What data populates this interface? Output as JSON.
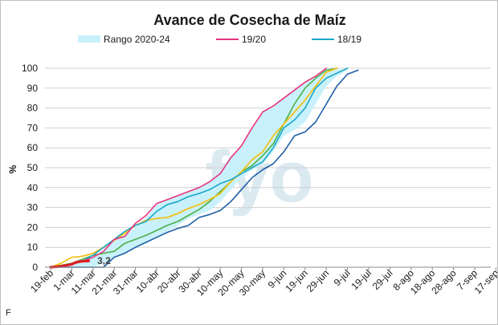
{
  "watermark": "fyo",
  "footer_mark": "F",
  "colors": {
    "band": "#c9f1fb",
    "s1920": "#e8347e",
    "s1819": "#1aa7c9",
    "green": "#4caf47",
    "yellow": "#f2c21b",
    "navy": "#1f5fa6",
    "current": "#e01b24",
    "grid": "#d0d0d0"
  },
  "chart_data": {
    "type": "line",
    "title": "Avance de Cosecha de Maíz",
    "xlabel": "",
    "ylabel": "%",
    "ylim": [
      0,
      100
    ],
    "yticks": [
      0,
      10,
      20,
      30,
      40,
      50,
      60,
      70,
      80,
      90,
      100
    ],
    "grid": true,
    "legend_position": "top",
    "categories": [
      "19-feb",
      "1-mar",
      "11-mar",
      "21-mar",
      "31-mar",
      "10-abr",
      "20-abr",
      "30-abr",
      "10-may",
      "20-may",
      "30-may",
      "9-jun",
      "19-jun",
      "29-jun",
      "9-jul",
      "19-jul",
      "29-jul",
      "8-ago",
      "18-ago",
      "28-ago",
      "7-sep",
      "17-sep"
    ],
    "band": {
      "name": "Rango 2020-24",
      "upper": [
        [
          0,
          0
        ],
        [
          0.5,
          0.5
        ],
        [
          1,
          1.5
        ],
        [
          1.5,
          3
        ],
        [
          2,
          5
        ],
        [
          2.5,
          8
        ],
        [
          3,
          14
        ],
        [
          3.5,
          15.5
        ],
        [
          4,
          20
        ],
        [
          4.5,
          25
        ],
        [
          5,
          31.5
        ],
        [
          5.5,
          34
        ],
        [
          6,
          36
        ],
        [
          6.5,
          38
        ],
        [
          7,
          40
        ],
        [
          7.5,
          43
        ],
        [
          8,
          48
        ],
        [
          8.5,
          56
        ],
        [
          9,
          61
        ],
        [
          9.5,
          70
        ],
        [
          10,
          78
        ],
        [
          10.5,
          81
        ],
        [
          11,
          85
        ],
        [
          11.5,
          89
        ],
        [
          12,
          93
        ],
        [
          12.5,
          96
        ],
        [
          13,
          100
        ]
      ],
      "lower": [
        [
          0,
          0
        ],
        [
          1,
          0
        ],
        [
          1.5,
          0
        ],
        [
          2,
          0
        ],
        [
          2.5,
          2
        ],
        [
          3,
          5
        ],
        [
          3.5,
          7
        ],
        [
          4,
          10
        ],
        [
          4.5,
          12.5
        ],
        [
          5,
          15
        ],
        [
          5.5,
          18
        ],
        [
          6,
          21
        ],
        [
          6.5,
          24.5
        ],
        [
          7,
          26.5
        ],
        [
          7.5,
          28.5
        ],
        [
          8,
          33
        ],
        [
          8.5,
          39
        ],
        [
          9,
          45
        ],
        [
          9.5,
          49
        ],
        [
          10,
          52
        ],
        [
          10.5,
          58
        ],
        [
          11,
          66
        ],
        [
          11.5,
          69
        ],
        [
          12,
          73
        ],
        [
          12.5,
          82
        ],
        [
          13,
          91
        ],
        [
          13.5,
          96
        ],
        [
          14,
          99
        ]
      ]
    },
    "series": [
      {
        "name": "19/20",
        "key": "s1920",
        "width": 1.6,
        "points": [
          [
            0,
            0
          ],
          [
            0.5,
            0.5
          ],
          [
            1,
            1.5
          ],
          [
            1.5,
            3
          ],
          [
            2,
            5
          ],
          [
            2.5,
            8
          ],
          [
            3,
            14
          ],
          [
            3.5,
            15.5
          ],
          [
            4,
            22
          ],
          [
            4.5,
            26
          ],
          [
            5,
            32
          ],
          [
            5.5,
            34
          ],
          [
            6,
            36
          ],
          [
            6.5,
            38
          ],
          [
            7,
            40
          ],
          [
            7.5,
            43
          ],
          [
            8,
            47
          ],
          [
            8.5,
            55
          ],
          [
            9,
            61
          ],
          [
            9.5,
            70
          ],
          [
            10,
            78
          ],
          [
            10.5,
            81
          ],
          [
            11,
            85
          ],
          [
            11.5,
            89
          ],
          [
            12,
            93
          ],
          [
            12.5,
            96
          ],
          [
            13,
            100
          ]
        ]
      },
      {
        "name": "18/19",
        "key": "s1819",
        "width": 1.6,
        "points": [
          [
            0,
            0
          ],
          [
            0.5,
            0.5
          ],
          [
            1,
            1.5
          ],
          [
            1.5,
            3
          ],
          [
            2,
            6
          ],
          [
            2.5,
            10
          ],
          [
            3,
            14
          ],
          [
            3.5,
            18
          ],
          [
            4,
            21
          ],
          [
            4.5,
            23
          ],
          [
            5,
            28
          ],
          [
            5.5,
            31.5
          ],
          [
            6,
            33
          ],
          [
            6.5,
            35.5
          ],
          [
            7,
            37
          ],
          [
            7.5,
            39
          ],
          [
            8,
            42
          ],
          [
            8.5,
            44
          ],
          [
            9,
            47
          ],
          [
            9.5,
            50
          ],
          [
            10,
            53
          ],
          [
            10.5,
            60
          ],
          [
            11,
            70
          ],
          [
            11.5,
            74
          ],
          [
            12,
            80
          ],
          [
            12.5,
            90
          ],
          [
            13,
            95
          ],
          [
            13.5,
            97.5
          ],
          [
            14,
            100
          ]
        ]
      },
      {
        "name": "",
        "key": "green",
        "width": 1.6,
        "points": [
          [
            0,
            0
          ],
          [
            0.5,
            1
          ],
          [
            1,
            2
          ],
          [
            1.5,
            4
          ],
          [
            2,
            6
          ],
          [
            2.5,
            7
          ],
          [
            3,
            8
          ],
          [
            3.5,
            12
          ],
          [
            4,
            14
          ],
          [
            4.5,
            16
          ],
          [
            5,
            18.5
          ],
          [
            5.5,
            21
          ],
          [
            6,
            23
          ],
          [
            6.5,
            26
          ],
          [
            7,
            29
          ],
          [
            7.5,
            33
          ],
          [
            8,
            38
          ],
          [
            8.5,
            43
          ],
          [
            9,
            48
          ],
          [
            9.5,
            51
          ],
          [
            10,
            56
          ],
          [
            10.5,
            62
          ],
          [
            11,
            72
          ],
          [
            11.5,
            82
          ],
          [
            12,
            90
          ],
          [
            12.5,
            95
          ],
          [
            13,
            99
          ],
          [
            13.5,
            100
          ]
        ]
      },
      {
        "name": "",
        "key": "yellow",
        "width": 1.8,
        "points": [
          [
            0,
            0
          ],
          [
            0.5,
            2
          ],
          [
            1,
            5
          ],
          [
            1.5,
            5.5
          ],
          [
            2,
            7
          ],
          [
            2.5,
            10
          ],
          [
            3,
            13.5
          ],
          [
            3.5,
            17
          ],
          [
            4,
            21
          ],
          [
            4.5,
            23.5
          ],
          [
            5,
            24.5
          ],
          [
            5.5,
            25
          ],
          [
            6,
            27
          ],
          [
            6.5,
            29.5
          ],
          [
            7,
            31.5
          ],
          [
            7.5,
            34
          ],
          [
            8,
            37
          ],
          [
            8.5,
            43
          ],
          [
            9,
            48
          ],
          [
            9.5,
            54
          ],
          [
            10,
            58
          ],
          [
            10.5,
            66
          ],
          [
            11,
            72
          ],
          [
            11.5,
            78
          ],
          [
            12,
            84
          ],
          [
            12.5,
            91
          ],
          [
            13,
            98
          ],
          [
            13.5,
            100
          ]
        ]
      },
      {
        "name": "",
        "key": "navy",
        "width": 1.6,
        "points": [
          [
            0,
            0
          ],
          [
            1,
            0
          ],
          [
            1.5,
            0
          ],
          [
            2,
            0
          ],
          [
            2.5,
            0
          ],
          [
            3,
            5
          ],
          [
            3.5,
            7
          ],
          [
            4,
            10
          ],
          [
            4.5,
            12.5
          ],
          [
            5,
            15
          ],
          [
            5.5,
            17.5
          ],
          [
            6,
            19.5
          ],
          [
            6.5,
            21
          ],
          [
            7,
            25
          ],
          [
            7.5,
            26.5
          ],
          [
            8,
            28.5
          ],
          [
            8.5,
            33
          ],
          [
            9,
            39
          ],
          [
            9.5,
            45
          ],
          [
            10,
            49
          ],
          [
            10.5,
            52
          ],
          [
            11,
            58
          ],
          [
            11.5,
            66
          ],
          [
            12,
            68
          ],
          [
            12.5,
            73
          ],
          [
            13,
            82
          ],
          [
            13.5,
            91
          ],
          [
            14,
            97
          ],
          [
            14.5,
            99
          ]
        ]
      },
      {
        "name": "",
        "key": "current",
        "width": 3.2,
        "points": [
          [
            0,
            0
          ],
          [
            0.5,
            0.5
          ],
          [
            1,
            1.5
          ],
          [
            1.2,
            2.5
          ],
          [
            1.5,
            3
          ],
          [
            1.8,
            3.2
          ]
        ]
      }
    ],
    "annotations": [
      {
        "text": "3,2",
        "x": 2.2,
        "y": 0.5
      }
    ]
  }
}
